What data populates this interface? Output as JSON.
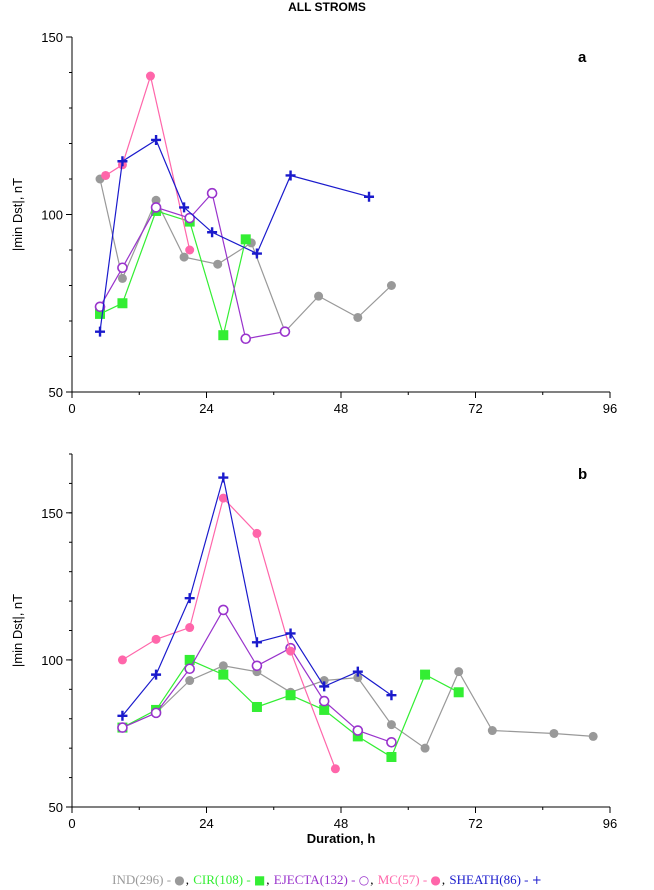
{
  "title": "ALL STROMS",
  "chart_data": [
    {
      "type": "line",
      "panel_label": "a",
      "xlabel": "",
      "ylabel": "|min Dst|, nT",
      "xlim": [
        0,
        96
      ],
      "ylim": [
        50,
        150
      ],
      "xticks": [
        0,
        24,
        48,
        72,
        96
      ],
      "yticks": [
        50,
        100,
        150
      ],
      "series": [
        {
          "key": "ind",
          "name": "IND(296)",
          "color": "#999999",
          "marker": "dot",
          "x": [
            5,
            9,
            15,
            20,
            26,
            32,
            38,
            44,
            51,
            57
          ],
          "y": [
            110,
            82,
            104,
            88,
            86,
            92,
            67,
            77,
            71,
            80
          ]
        },
        {
          "key": "cir",
          "name": "CIR(108)",
          "color": "#33ee33",
          "marker": "square",
          "x": [
            5,
            9,
            15,
            21,
            27,
            31
          ],
          "y": [
            72,
            75,
            101,
            98,
            66,
            93
          ]
        },
        {
          "key": "mc",
          "name": "MC(57)",
          "color": "#ff66aa",
          "marker": "dot",
          "x": [
            6,
            9,
            14,
            21
          ],
          "y": [
            111,
            114,
            139,
            90
          ]
        },
        {
          "key": "ejecta",
          "name": "EJECTA(132)",
          "color": "#9933cc",
          "marker": "circle",
          "x": [
            5,
            9,
            15,
            21,
            25,
            31,
            38
          ],
          "y": [
            74,
            85,
            102,
            99,
            106,
            65,
            67
          ]
        },
        {
          "key": "sheath",
          "name": "SHEATH(86)",
          "color": "#1a1acc",
          "marker": "plus",
          "x": [
            5,
            9,
            15,
            20,
            25,
            33,
            39,
            53
          ],
          "y": [
            67,
            115,
            121,
            102,
            95,
            89,
            111,
            105
          ]
        }
      ]
    },
    {
      "type": "line",
      "panel_label": "b",
      "xlabel": "Duration, h",
      "ylabel": "|min Dst|, nT",
      "xlim": [
        0,
        96
      ],
      "ylim": [
        50,
        170
      ],
      "xticks": [
        0,
        24,
        48,
        72,
        96
      ],
      "yticks": [
        50,
        100,
        150
      ],
      "series": [
        {
          "key": "ind",
          "name": "IND(296)",
          "color": "#999999",
          "marker": "dot",
          "x": [
            9,
            15,
            21,
            27,
            33,
            39,
            45,
            51,
            57,
            63,
            69,
            75,
            86,
            93
          ],
          "y": [
            77,
            82,
            93,
            98,
            96,
            89,
            93,
            94,
            78,
            70,
            96,
            76,
            75,
            74
          ]
        },
        {
          "key": "cir",
          "name": "CIR(108)",
          "color": "#33ee33",
          "marker": "square",
          "x": [
            9,
            15,
            21,
            27,
            33,
            39,
            45,
            51,
            57,
            63,
            69
          ],
          "y": [
            77,
            83,
            100,
            95,
            84,
            88,
            83,
            74,
            67,
            95,
            89
          ]
        },
        {
          "key": "ejecta",
          "name": "EJECTA(132)",
          "color": "#9933cc",
          "marker": "circle",
          "x": [
            9,
            15,
            21,
            27,
            33,
            39,
            45,
            51,
            57
          ],
          "y": [
            77,
            82,
            97,
            117,
            98,
            104,
            86,
            76,
            72
          ]
        },
        {
          "key": "mc",
          "name": "MC(57)",
          "color": "#ff66aa",
          "marker": "dot",
          "x": [
            9,
            15,
            21,
            27,
            33,
            39,
            47
          ],
          "y": [
            100,
            107,
            111,
            155,
            143,
            103,
            63
          ]
        },
        {
          "key": "sheath",
          "name": "SHEATH(86)",
          "color": "#1a1acc",
          "marker": "plus",
          "x": [
            9,
            15,
            21,
            27,
            33,
            39,
            45,
            51,
            57
          ],
          "y": [
            81,
            95,
            121,
            162,
            106,
            109,
            91,
            96,
            88
          ]
        }
      ]
    }
  ],
  "legend": [
    {
      "label": "IND(296)",
      "color": "#999999",
      "symbol": "●"
    },
    {
      "label": "CIR(108)",
      "color": "#33ee33",
      "symbol": "■"
    },
    {
      "label": "EJECTA(132)",
      "color": "#9933cc",
      "symbol": "○"
    },
    {
      "label": "MC(57)",
      "color": "#ff66aa",
      "symbol": "●"
    },
    {
      "label": "SHEATH(86)",
      "color": "#1a1acc",
      "symbol": "+"
    }
  ]
}
